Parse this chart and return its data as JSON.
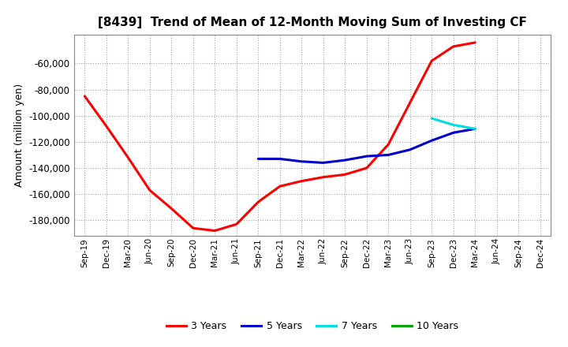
{
  "title": "[8439]  Trend of Mean of 12-Month Moving Sum of Investing CF",
  "ylabel": "Amount (million yen)",
  "background_color": "#ffffff",
  "grid_color": "#999999",
  "ylim": [
    -192000,
    -38000
  ],
  "yticks": [
    -180000,
    -160000,
    -140000,
    -120000,
    -100000,
    -80000,
    -60000
  ],
  "series": {
    "3years": {
      "color": "#ff0000",
      "linewidth": 2.2,
      "x": [
        0,
        1,
        2,
        3,
        4,
        5,
        6,
        7,
        8,
        9,
        10,
        11,
        12,
        13,
        14,
        15,
        16,
        17,
        18
      ],
      "values": [
        -85000,
        -108000,
        -132000,
        -157000,
        -171000,
        -186000,
        -188000,
        -183000,
        -166000,
        -154000,
        -150000,
        -147000,
        -145000,
        -140000,
        -122000,
        -90000,
        -58000,
        -47000,
        -44000
      ]
    },
    "5years": {
      "color": "#0000cc",
      "linewidth": 2.2,
      "x": [
        8,
        9,
        10,
        11,
        12,
        13,
        14,
        15,
        16,
        17,
        18
      ],
      "values": [
        -133000,
        -133000,
        -135000,
        -136000,
        -134000,
        -131000,
        -130000,
        -126000,
        -119000,
        -113000,
        -110000
      ]
    },
    "7years": {
      "color": "#00dddd",
      "linewidth": 2.2,
      "x": [
        16,
        17,
        18
      ],
      "values": [
        -102000,
        -107000,
        -110000
      ]
    },
    "10years": {
      "color": "#00aa00",
      "linewidth": 2.2,
      "x": [],
      "values": []
    }
  },
  "legend": {
    "labels": [
      "3 Years",
      "5 Years",
      "7 Years",
      "10 Years"
    ],
    "colors": [
      "#ff0000",
      "#0000cc",
      "#00dddd",
      "#00aa00"
    ]
  },
  "xtick_labels": [
    "Sep-19",
    "Dec-19",
    "Mar-20",
    "Jun-20",
    "Sep-20",
    "Dec-20",
    "Mar-21",
    "Jun-21",
    "Sep-21",
    "Dec-21",
    "Mar-22",
    "Jun-22",
    "Sep-22",
    "Dec-22",
    "Mar-23",
    "Jun-23",
    "Sep-23",
    "Dec-23",
    "Mar-24",
    "Jun-24",
    "Sep-24",
    "Dec-24"
  ],
  "plot_xlim": [
    -0.5,
    21.5
  ],
  "figsize": [
    7.2,
    4.4
  ],
  "dpi": 100
}
